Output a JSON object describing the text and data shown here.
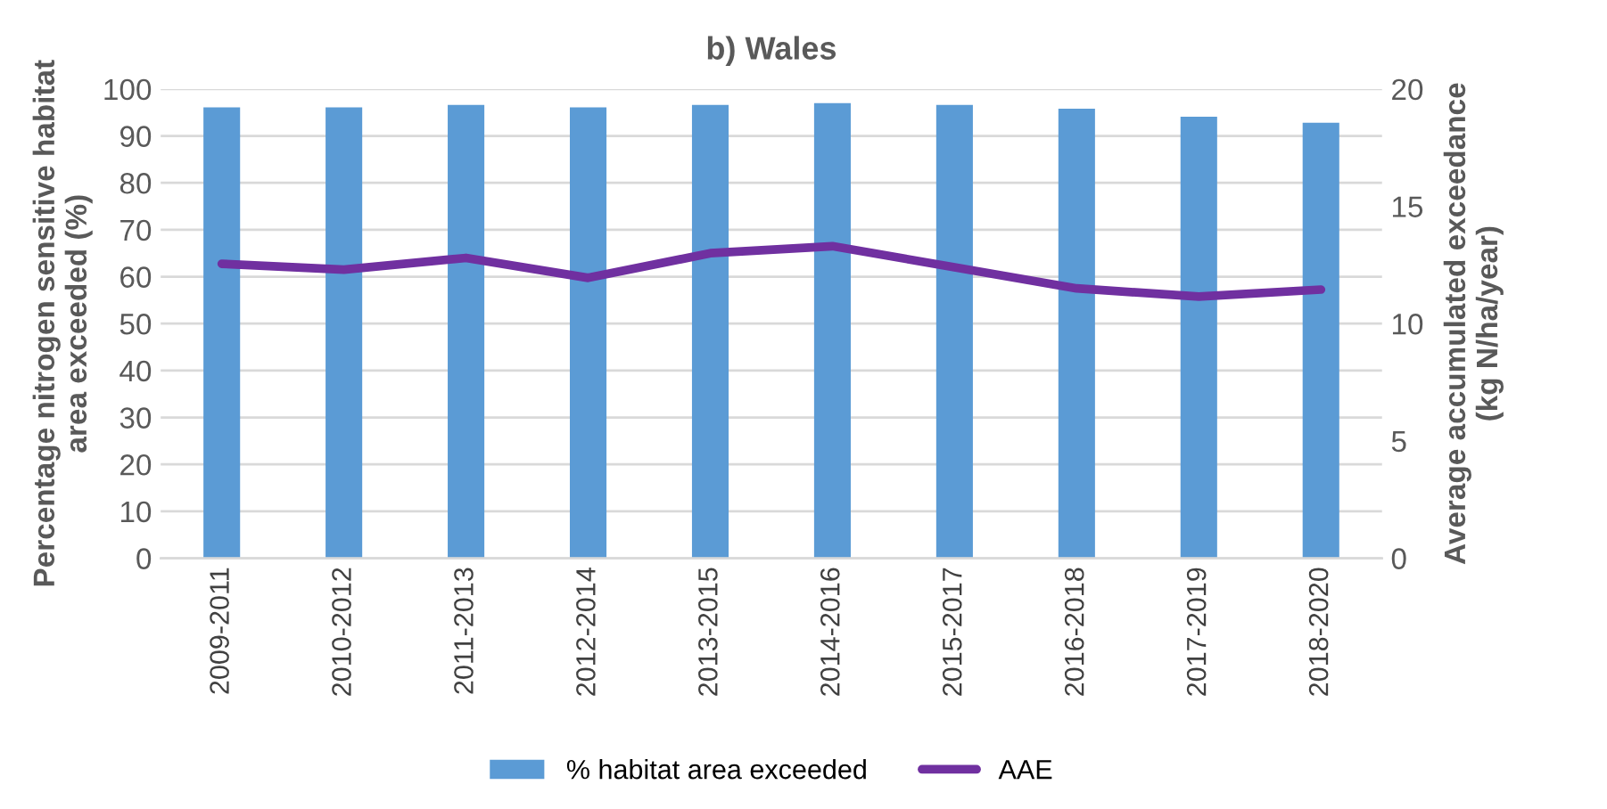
{
  "chart_data": {
    "type": "bar",
    "title": "b) Wales",
    "ylabel": "Percentage nitrogen sensitive habitat\narea exceeded (%)",
    "y2label": "Average accumulated exceedance\n(kg N/ha/year)",
    "categories": [
      "2009-2011",
      "2010-2012",
      "2011-2013",
      "2012-2014",
      "2013-2015",
      "2014-2016",
      "2015-2017",
      "2016-2018",
      "2017-2019",
      "2018-2020"
    ],
    "series": [
      {
        "name": "% habitat area exceeded",
        "color": "#5b9bd5",
        "values": [
          96.1,
          96.1,
          96.6,
          96.1,
          96.6,
          97.0,
          96.6,
          95.8,
          94.1,
          92.8
        ]
      },
      {
        "name": "AAE",
        "type": "line",
        "axis": "y2",
        "color": "#7030a0",
        "values": [
          12.55,
          12.3,
          12.8,
          11.95,
          13.0,
          13.3,
          12.4,
          11.5,
          11.15,
          11.45
        ]
      }
    ],
    "ylim": [
      0,
      100
    ],
    "yticks": [
      0,
      10,
      20,
      30,
      40,
      50,
      60,
      70,
      80,
      90,
      100
    ],
    "y2lim": [
      0,
      20
    ],
    "y2ticks": [
      0,
      5,
      10,
      15,
      20
    ],
    "grid": "y",
    "legend": "bottom",
    "marker": "none",
    "line_style": "solid"
  }
}
